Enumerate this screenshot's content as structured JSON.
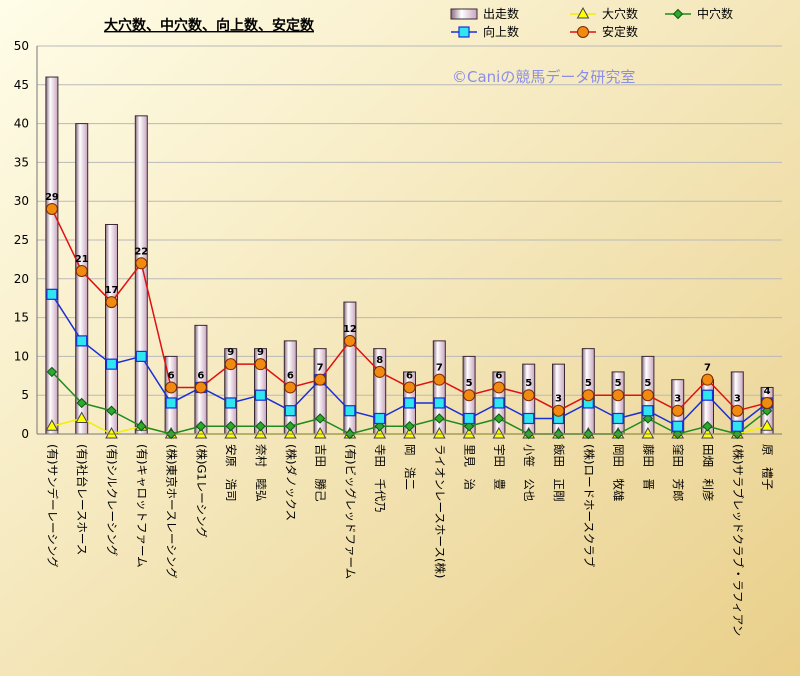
{
  "chart_data": {
    "type": "bar+line",
    "title": "大穴数、中穴数、向上数、安定数",
    "watermark": "©Caniの競馬データ研究室",
    "ylim": [
      0,
      50
    ],
    "yticks": [
      0,
      5,
      10,
      15,
      20,
      25,
      30,
      35,
      40,
      45,
      50
    ],
    "grid": true,
    "legend_position": "top-right",
    "categories": [
      "(有)サンデーレーシング",
      "(有)社台レースホース",
      "(有)シルクレーシング",
      "(有)キャロットファーム",
      "(株)東京ホースレーシング",
      "(株)G1レーシング",
      "安原　浩司",
      "奈村　睦弘",
      "(株)ダノックス",
      "吉田　勝己",
      "(有)ビッグレッドファーム",
      "寺田　千代乃",
      "岡　浩二",
      "ライオンレースホース(株)",
      "里見　治",
      "宇田　豊",
      "小笹　公也",
      "飯田　正剛",
      "(株)ロードホースクラブ",
      "岡田　牧雄",
      "藤田　晋",
      "窪田　芳郎",
      "田畑　利彦",
      "(株)サラブレッドクラブ・ラフィアン",
      "原　禮子"
    ],
    "series": [
      {
        "name": "出走数",
        "kind": "bar",
        "color": "#e6cfe0",
        "values": [
          46,
          40,
          27,
          41,
          10,
          14,
          11,
          11,
          12,
          11,
          17,
          11,
          8,
          12,
          10,
          8,
          9,
          9,
          11,
          8,
          10,
          7,
          7,
          8,
          6
        ]
      },
      {
        "name": "大穴数",
        "kind": "line",
        "color": "#f0f000",
        "marker": "triangle",
        "values": [
          1,
          2,
          0,
          1,
          0,
          0,
          0,
          0,
          0,
          0,
          0,
          0,
          0,
          0,
          0,
          0,
          0,
          0,
          0,
          0,
          0,
          0,
          0,
          0,
          1
        ]
      },
      {
        "name": "中穴数",
        "kind": "line",
        "color": "#1f8a1f",
        "marker": "diamond",
        "values": [
          8,
          4,
          3,
          1,
          0,
          1,
          1,
          1,
          1,
          2,
          0,
          1,
          1,
          2,
          1,
          2,
          0,
          0,
          0,
          0,
          2,
          0,
          1,
          0,
          3
        ]
      },
      {
        "name": "向上数",
        "kind": "line",
        "color": "#1a2fd6",
        "marker": "square",
        "values": [
          18,
          12,
          9,
          10,
          4,
          6,
          4,
          5,
          3,
          7,
          3,
          2,
          4,
          4,
          2,
          4,
          2,
          2,
          4,
          2,
          3,
          1,
          5,
          1,
          4
        ]
      },
      {
        "name": "安定数",
        "kind": "line",
        "color": "#e01010",
        "marker": "circle",
        "values": [
          29,
          21,
          17,
          22,
          6,
          6,
          9,
          9,
          6,
          7,
          12,
          8,
          6,
          7,
          5,
          6,
          5,
          3,
          5,
          5,
          5,
          3,
          7,
          3,
          4
        ]
      }
    ]
  }
}
